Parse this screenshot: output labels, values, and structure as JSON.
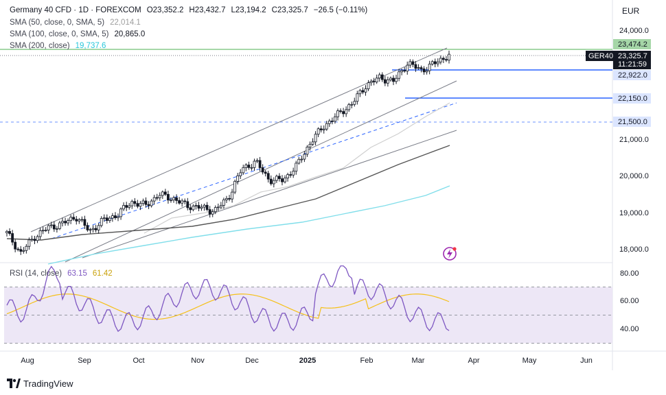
{
  "header": {
    "symbol": "Germany 40 CFD · 1D · FOREXCOM",
    "open": "O23,352.2",
    "high": "H23,432.7",
    "low": "L23,194.2",
    "close": "C23,325.7",
    "change": "−26.5 (−0.11%)",
    "sma50_label": "SMA (50, close, 0, SMA, 5)",
    "sma50_value": "22,014.1",
    "sma100_label": "SMA (100, close, 0, SMA, 5)",
    "sma100_value": "20,865.0",
    "sma200_label": "SMA (200, close)",
    "sma200_value": "19,737.6"
  },
  "currency": "EUR",
  "price_ticks": [
    "24,000.0",
    "21,000.0",
    "20,000.0",
    "19,000.0",
    "18,000.0"
  ],
  "price_tags": {
    "resistance": "23,474.2",
    "ticker": "GER40",
    "last": "23,325.7",
    "countdown": "11:21:59",
    "level1": "22,922.0",
    "level2": "22,150.0",
    "level3": "21,500.0"
  },
  "rsi": {
    "label": "RSI (14, close)",
    "value": "63.15",
    "ma_value": "61.42",
    "ticks": [
      "80.00",
      "60.00",
      "40.00"
    ]
  },
  "time_ticks": [
    "Aug",
    "Sep",
    "Oct",
    "Nov",
    "Dec",
    "2025",
    "Feb",
    "Mar",
    "Apr",
    "May",
    "Jun"
  ],
  "brand": "TradingView",
  "colors": {
    "up": "#131722",
    "sma50": "#cfcfcf",
    "sma100": "#555555",
    "sma200": "#80deea",
    "green_line": "#4caf50",
    "level": "#2962ff",
    "rsi_line": "#7e57c2",
    "rsi_ma": "#f5c018",
    "rsi_band": "#ede7f6",
    "resistance_tag": "#a5d6a7"
  },
  "chart_data": {
    "type": "candlestick",
    "instrument": "Germany 40 CFD",
    "timeframe": "1D",
    "approx_closes_weekly": [
      {
        "x": "Jul",
        "y": 18450
      },
      {
        "x": "Aug",
        "y": 17900
      },
      {
        "x": "Aug",
        "y": 18350
      },
      {
        "x": "Aug",
        "y": 18600
      },
      {
        "x": "Aug",
        "y": 18700
      },
      {
        "x": "Sep",
        "y": 18900
      },
      {
        "x": "Sep",
        "y": 18500
      },
      {
        "x": "Sep",
        "y": 18800
      },
      {
        "x": "Sep",
        "y": 18950
      },
      {
        "x": "Oct",
        "y": 19300
      },
      {
        "x": "Oct",
        "y": 19200
      },
      {
        "x": "Oct",
        "y": 19500
      },
      {
        "x": "Oct",
        "y": 19400
      },
      {
        "x": "Nov",
        "y": 19200
      },
      {
        "x": "Nov",
        "y": 19150
      },
      {
        "x": "Nov",
        "y": 19050
      },
      {
        "x": "Nov",
        "y": 19400
      },
      {
        "x": "Dec",
        "y": 20200
      },
      {
        "x": "Dec",
        "y": 20400
      },
      {
        "x": "Dec",
        "y": 19900
      },
      {
        "x": "Dec",
        "y": 19900
      },
      {
        "x": "2025",
        "y": 20300
      },
      {
        "x": "2025",
        "y": 20950
      },
      {
        "x": "2025",
        "y": 21400
      },
      {
        "x": "2025",
        "y": 21700
      },
      {
        "x": "Feb",
        "y": 22000
      },
      {
        "x": "Feb",
        "y": 22500
      },
      {
        "x": "Feb",
        "y": 22700
      },
      {
        "x": "Feb",
        "y": 22600
      },
      {
        "x": "Mar",
        "y": 23100
      },
      {
        "x": "Mar",
        "y": 22900
      },
      {
        "x": "Mar",
        "y": 23100
      },
      {
        "x": "Mar",
        "y": 23325.7
      }
    ],
    "ylim": [
      17600,
      24300
    ],
    "rsi_ylim": [
      20,
      90
    ]
  }
}
